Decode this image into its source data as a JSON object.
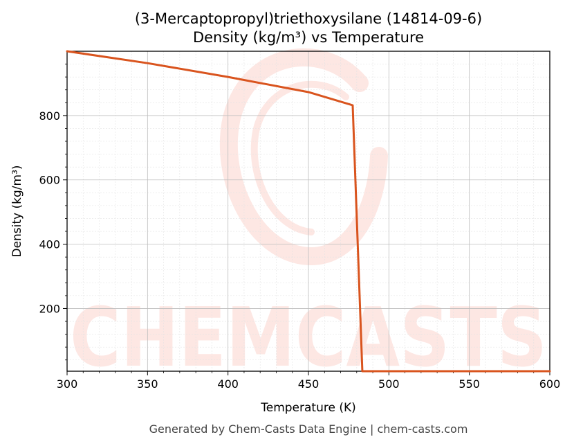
{
  "chart_data": {
    "type": "line",
    "title": "(3-Mercaptopropyl)triethoxysilane (14814-09-6)",
    "subtitle": "Density (kg/m³) vs Temperature",
    "xlabel": "Temperature (K)",
    "ylabel": "Density (kg/m³)",
    "xlim": [
      300,
      600
    ],
    "ylim": [
      5,
      1000
    ],
    "xticks": [
      300,
      350,
      400,
      450,
      500,
      550,
      600
    ],
    "yticks": [
      200,
      400,
      600,
      800
    ],
    "grid": true,
    "series": [
      {
        "color": "#d9541e",
        "x": [
          300,
          350,
          400,
          450,
          477.5,
          483.5,
          500,
          550,
          600
        ],
        "y": [
          1000,
          963,
          920,
          873,
          832,
          5,
          5,
          5,
          5
        ]
      }
    ]
  },
  "watermark": {
    "text": "CHEMCASTS",
    "color": "#fde3df"
  },
  "footer": "Generated by Chem-Casts Data Engine | chem-casts.com"
}
